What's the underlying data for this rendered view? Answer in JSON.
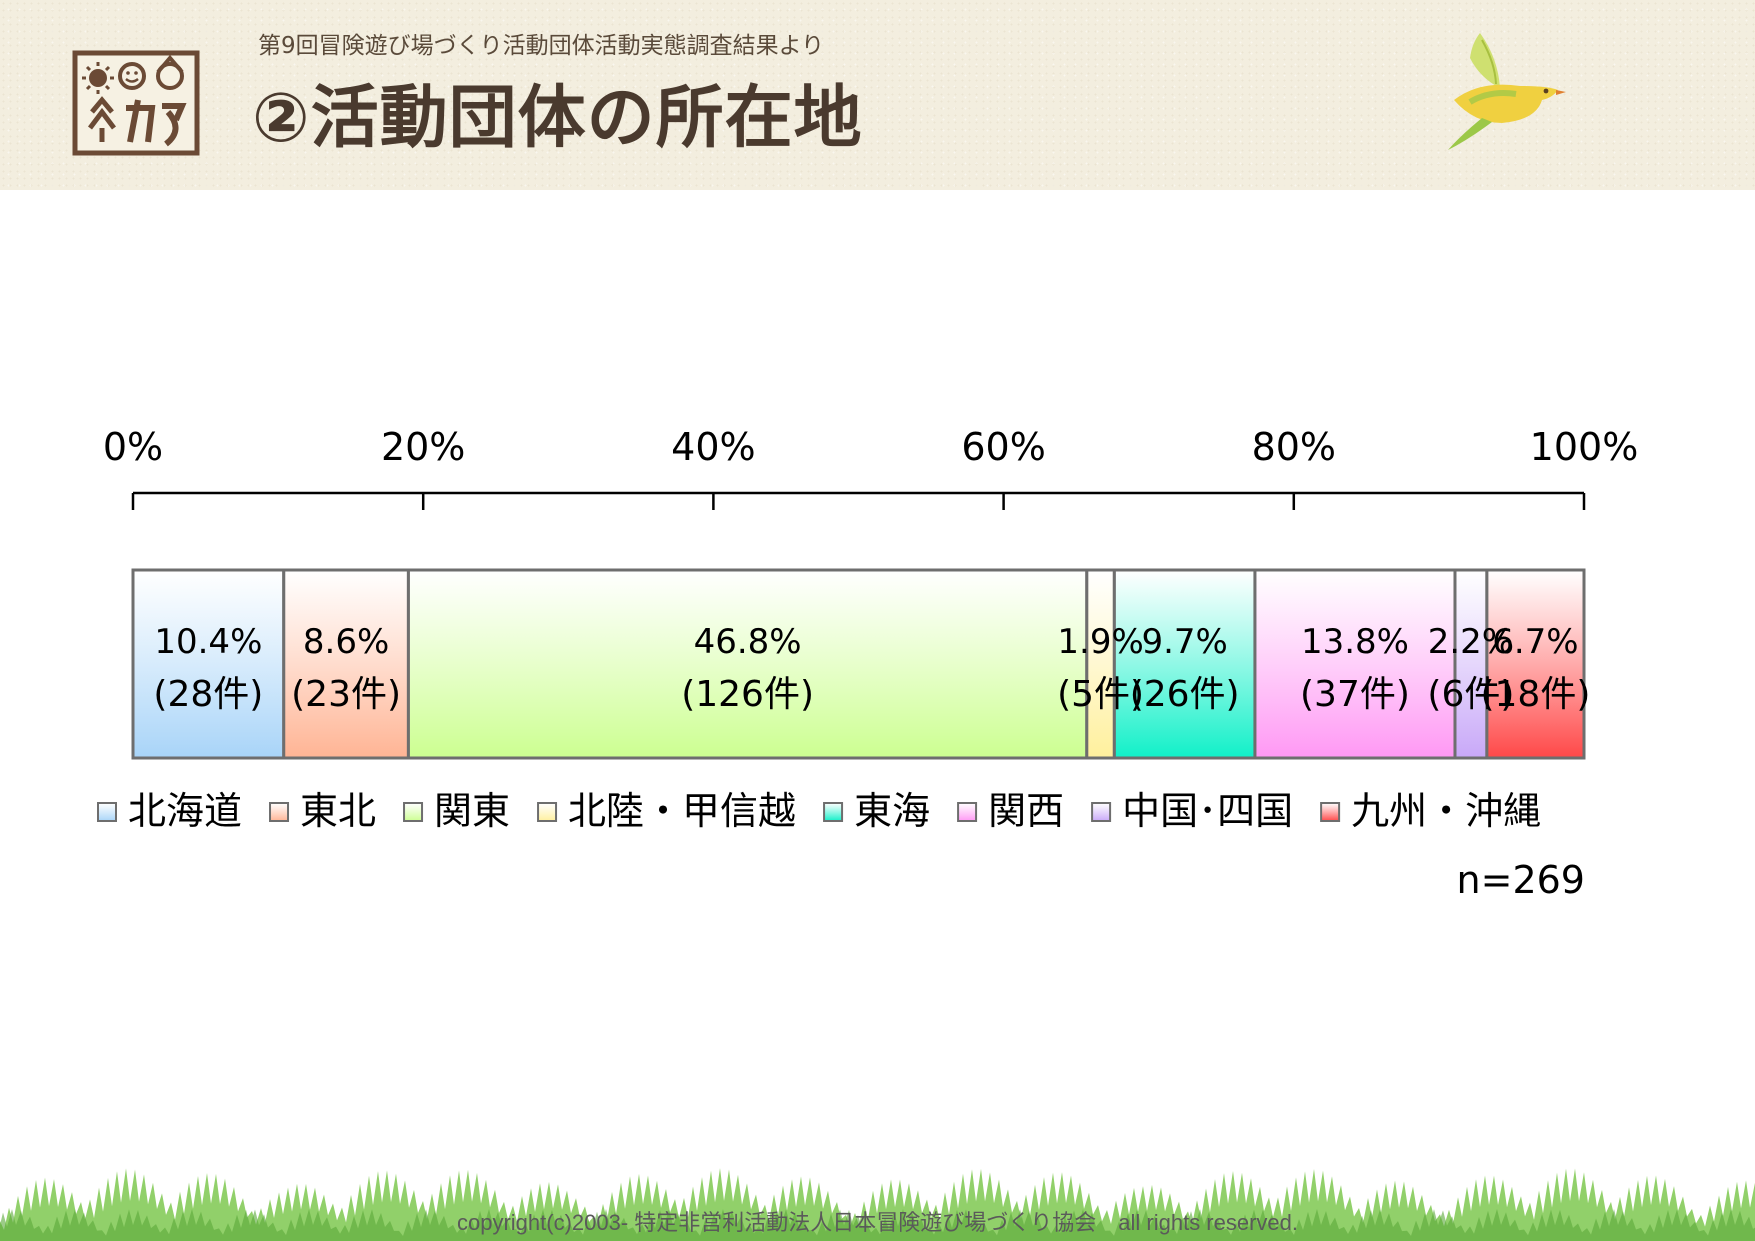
{
  "header": {
    "subtitle": "第9回冒険遊び場づくり活動団体活動実態調査結果より",
    "title": "②活動団体の所在地"
  },
  "chart_data": {
    "type": "bar",
    "orientation": "horizontal-stacked-100",
    "axis": {
      "ticks": [
        "0%",
        "20%",
        "40%",
        "60%",
        "80%",
        "100%"
      ],
      "range": [
        0,
        100
      ],
      "position": "top"
    },
    "legend_position": "bottom",
    "segments": [
      {
        "name": "北海道",
        "percent_label": "10.4%",
        "count_label": "(28件)",
        "value": 10.4,
        "color": "#a8d4f8"
      },
      {
        "name": "東北",
        "percent_label": "8.6%",
        "count_label": "(23件)",
        "value": 8.6,
        "color": "#ffb494"
      },
      {
        "name": "関東",
        "percent_label": "46.8%",
        "count_label": "(126件)",
        "value": 46.8,
        "color": "#ccff90"
      },
      {
        "name": "北陸・甲信越",
        "percent_label": "1.9%",
        "count_label": "(5件)",
        "value": 1.9,
        "color": "#fff09c"
      },
      {
        "name": "東海",
        "percent_label": "9.7%",
        "count_label": "(26件)",
        "value": 9.7,
        "color": "#10f0c8"
      },
      {
        "name": "関西",
        "percent_label": "13.8%",
        "count_label": "(37件)",
        "value": 13.8,
        "color": "#ff98f4"
      },
      {
        "name": "中国･四国",
        "percent_label": "2.2%",
        "count_label": "(6件)",
        "value": 2.2,
        "color": "#c8a8f8"
      },
      {
        "name": "九州・沖縄",
        "percent_label": "6.7%",
        "count_label": "(18件)",
        "value": 6.7,
        "color": "#ff4848"
      }
    ],
    "n_label": "n=269"
  },
  "footer": {
    "copyright": "copyright(c)2003- 特定非営利活動法人日本冒険遊び場づくり協会　all rights reserved."
  }
}
